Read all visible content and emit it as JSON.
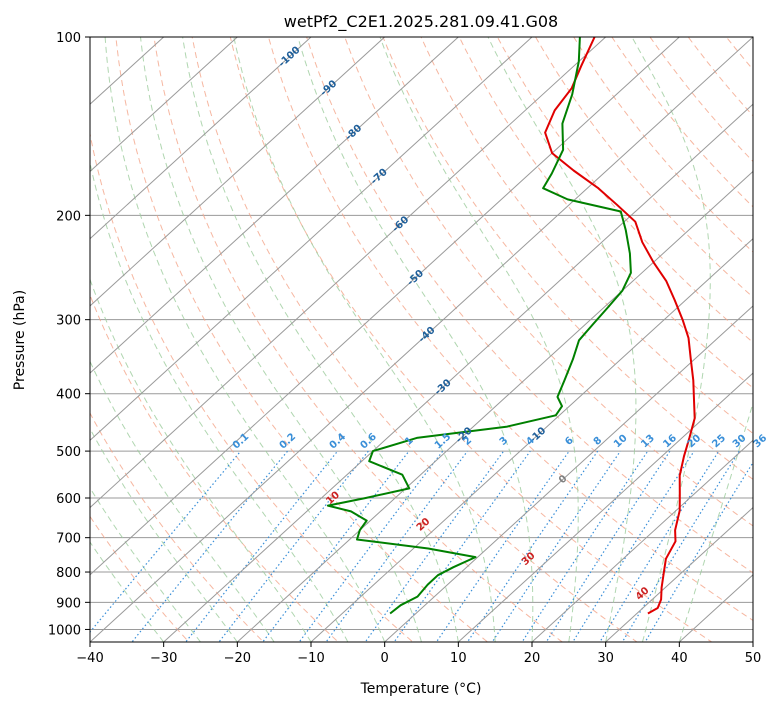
{
  "chart_data": {
    "type": "line",
    "subtype": "skew-t-log-p",
    "title": "wetPf2_C2E1.2025.281.09.41.G08",
    "xlabel": "Temperature (°C)",
    "ylabel": "Pressure (hPa)",
    "xlim": [
      -40,
      50
    ],
    "ylim": [
      1050,
      100
    ],
    "yscale": "log",
    "x_ticks": [
      -40,
      -30,
      -20,
      -10,
      0,
      10,
      20,
      30,
      40,
      50
    ],
    "y_ticks": [
      100,
      200,
      300,
      400,
      500,
      600,
      700,
      800,
      900,
      1000
    ],
    "grid": true,
    "colors": {
      "temperature": "#e00000",
      "dewpoint": "#008000",
      "isotherm": "#9a9a9a",
      "dry_adiabat": "#f4a58a",
      "moist_adiabat": "#9ccc9c",
      "mixing_ratio": "#3a8fd8",
      "isotherm_label": "#1f5f9a",
      "dry_adiabat_label": "#cc2222",
      "zero_label": "#808080"
    },
    "isotherm_labels": [
      "-100",
      "-90",
      "-80",
      "-70",
      "-60",
      "-50",
      "-40",
      "-30",
      "-20",
      "-10",
      "0"
    ],
    "dry_adiabat_labels": [
      "10",
      "20",
      "30",
      "40"
    ],
    "mixing_ratio_labels": [
      "0.1",
      "0.2",
      "0.4",
      "0.6",
      "1",
      "1.5",
      "2",
      "3",
      "4",
      "6",
      "8",
      "10",
      "13",
      "16",
      "20",
      "25",
      "30",
      "36"
    ],
    "series": [
      {
        "key": "temperature",
        "points": [
          [
            31.5,
            940
          ],
          [
            32.0,
            920
          ],
          [
            31.2,
            890
          ],
          [
            29.5,
            850
          ],
          [
            27.5,
            800
          ],
          [
            25.8,
            760
          ],
          [
            24.5,
            710
          ],
          [
            22.8,
            680
          ],
          [
            20.5,
            630
          ],
          [
            18.0,
            590
          ],
          [
            15.3,
            550
          ],
          [
            13.0,
            510
          ],
          [
            11.0,
            475
          ],
          [
            8.8,
            440
          ],
          [
            6.0,
            410
          ],
          [
            3.0,
            380
          ],
          [
            -0.5,
            350
          ],
          [
            -4.0,
            322
          ],
          [
            -7.5,
            300
          ],
          [
            -11.5,
            278
          ],
          [
            -15.5,
            258
          ],
          [
            -20.0,
            240
          ],
          [
            -24.5,
            222
          ],
          [
            -28.5,
            205
          ],
          [
            -33.5,
            192
          ],
          [
            -38.5,
            180
          ],
          [
            -44.5,
            168
          ],
          [
            -50.0,
            157
          ],
          [
            -54.0,
            145
          ],
          [
            -56.0,
            133
          ],
          [
            -57.0,
            122
          ],
          [
            -59.0,
            112
          ],
          [
            -61.5,
            100
          ]
        ]
      },
      {
        "key": "dewpoint",
        "points": [
          [
            -3.5,
            940
          ],
          [
            -3.3,
            910
          ],
          [
            -2.3,
            880
          ],
          [
            -2.7,
            840
          ],
          [
            -2.7,
            810
          ],
          [
            -1.8,
            785
          ],
          [
            -0.3,
            755
          ],
          [
            -8.0,
            730
          ],
          [
            -19.0,
            705
          ],
          [
            -20.0,
            680
          ],
          [
            -20.5,
            655
          ],
          [
            -24.0,
            632
          ],
          [
            -28.0,
            618
          ],
          [
            -24.0,
            600
          ],
          [
            -19.5,
            578
          ],
          [
            -22.5,
            548
          ],
          [
            -29.0,
            520
          ],
          [
            -30.0,
            500
          ],
          [
            -26.0,
            475
          ],
          [
            -15.5,
            455
          ],
          [
            -10.5,
            435
          ],
          [
            -11.0,
            420
          ],
          [
            -13.0,
            405
          ],
          [
            -14.5,
            380
          ],
          [
            -16.5,
            350
          ],
          [
            -18.5,
            325
          ],
          [
            -19.0,
            305
          ],
          [
            -19.5,
            285
          ],
          [
            -20.0,
            268
          ],
          [
            -21.5,
            250
          ],
          [
            -24.5,
            232
          ],
          [
            -28.5,
            212
          ],
          [
            -32.0,
            197
          ],
          [
            -41.0,
            188
          ],
          [
            -46.0,
            180
          ],
          [
            -47.0,
            170
          ],
          [
            -49.0,
            155
          ],
          [
            -53.0,
            140
          ],
          [
            -56.0,
            125
          ],
          [
            -60.0,
            110
          ],
          [
            -63.5,
            100
          ]
        ]
      }
    ]
  }
}
